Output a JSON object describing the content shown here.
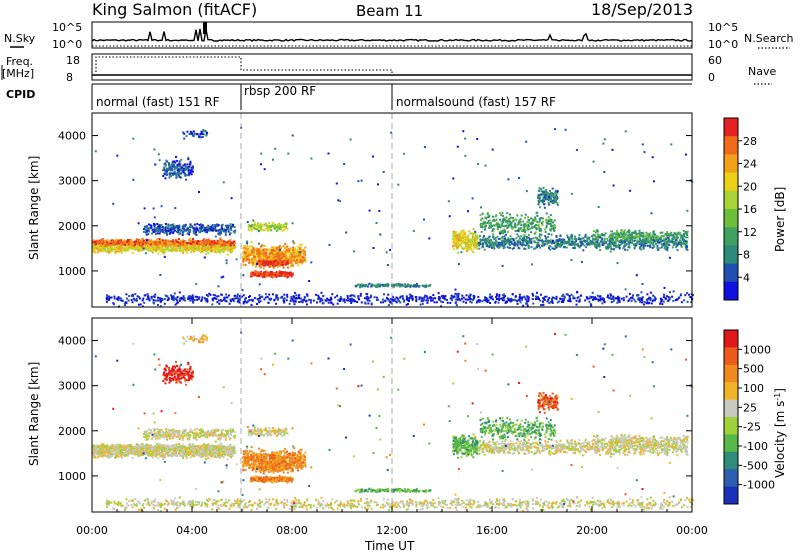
{
  "header": {
    "station": "King Salmon (fitACF)",
    "beam": "Beam 11",
    "date": "18/Sep/2013"
  },
  "top_panels": {
    "nsky_label": "N.Sky",
    "nsearch_label": "N.Search",
    "freq_label_1": "Freq.",
    "freq_label_2": "[MHz]",
    "nave_label": "Nave",
    "cpid_label": "CPID",
    "nsky_ticks": [
      "10^5",
      "10^0"
    ],
    "nsearch_ticks": [
      "10^5",
      "10^0"
    ],
    "freq_ticks": [
      "18",
      "8"
    ],
    "nave_ticks": [
      "60",
      "0"
    ]
  },
  "cpid_modes": [
    {
      "label": "normal (fast) 151 RF",
      "start_h": 0,
      "end_h": 6
    },
    {
      "label": "rbsp 200 RF",
      "start_h": 6,
      "end_h": 12
    },
    {
      "label": "normalsound (fast) 157 RF",
      "start_h": 12,
      "end_h": 24
    }
  ],
  "chart_data": [
    {
      "type": "heatmap",
      "panel": "power",
      "ylabel": "Slant Range [km]",
      "xlabel": "",
      "ylim": [
        200,
        4500
      ],
      "xlim_hours": [
        0,
        24
      ],
      "yticks": [
        1000,
        2000,
        3000,
        4000
      ],
      "colorbar": {
        "label": "Power [dB]",
        "ticks": [
          "28",
          "24",
          "20",
          "16",
          "12",
          "8",
          "4"
        ],
        "colors": [
          "#1010e0",
          "#1f4fb0",
          "#2d8a7a",
          "#3fa060",
          "#6cbf3a",
          "#a9d438",
          "#ecd018",
          "#f4a11a",
          "#f06a1c",
          "#e62222"
        ]
      }
    },
    {
      "type": "heatmap",
      "panel": "velocity",
      "ylabel": "Slant Range [km]",
      "xlabel": "Time UT",
      "ylim": [
        200,
        4500
      ],
      "xlim_hours": [
        0,
        24
      ],
      "yticks": [
        1000,
        2000,
        3000,
        4000
      ],
      "xtick_labels": [
        "00:00",
        "04:00",
        "08:00",
        "12:00",
        "16:00",
        "20:00",
        "00:00"
      ],
      "colorbar": {
        "label": "Velocity [m s^-1]",
        "ticks": [
          "1000",
          "500",
          "100",
          "25",
          "-25",
          "-100",
          "-500",
          "-1000"
        ],
        "colors": [
          "#1c2fb8",
          "#2c5fb0",
          "#2f8b7a",
          "#58b84a",
          "#9fd23a",
          "#c8c8c0",
          "#f0b428",
          "#f08a1e",
          "#ec5a1c",
          "#e01818"
        ]
      }
    }
  ]
}
